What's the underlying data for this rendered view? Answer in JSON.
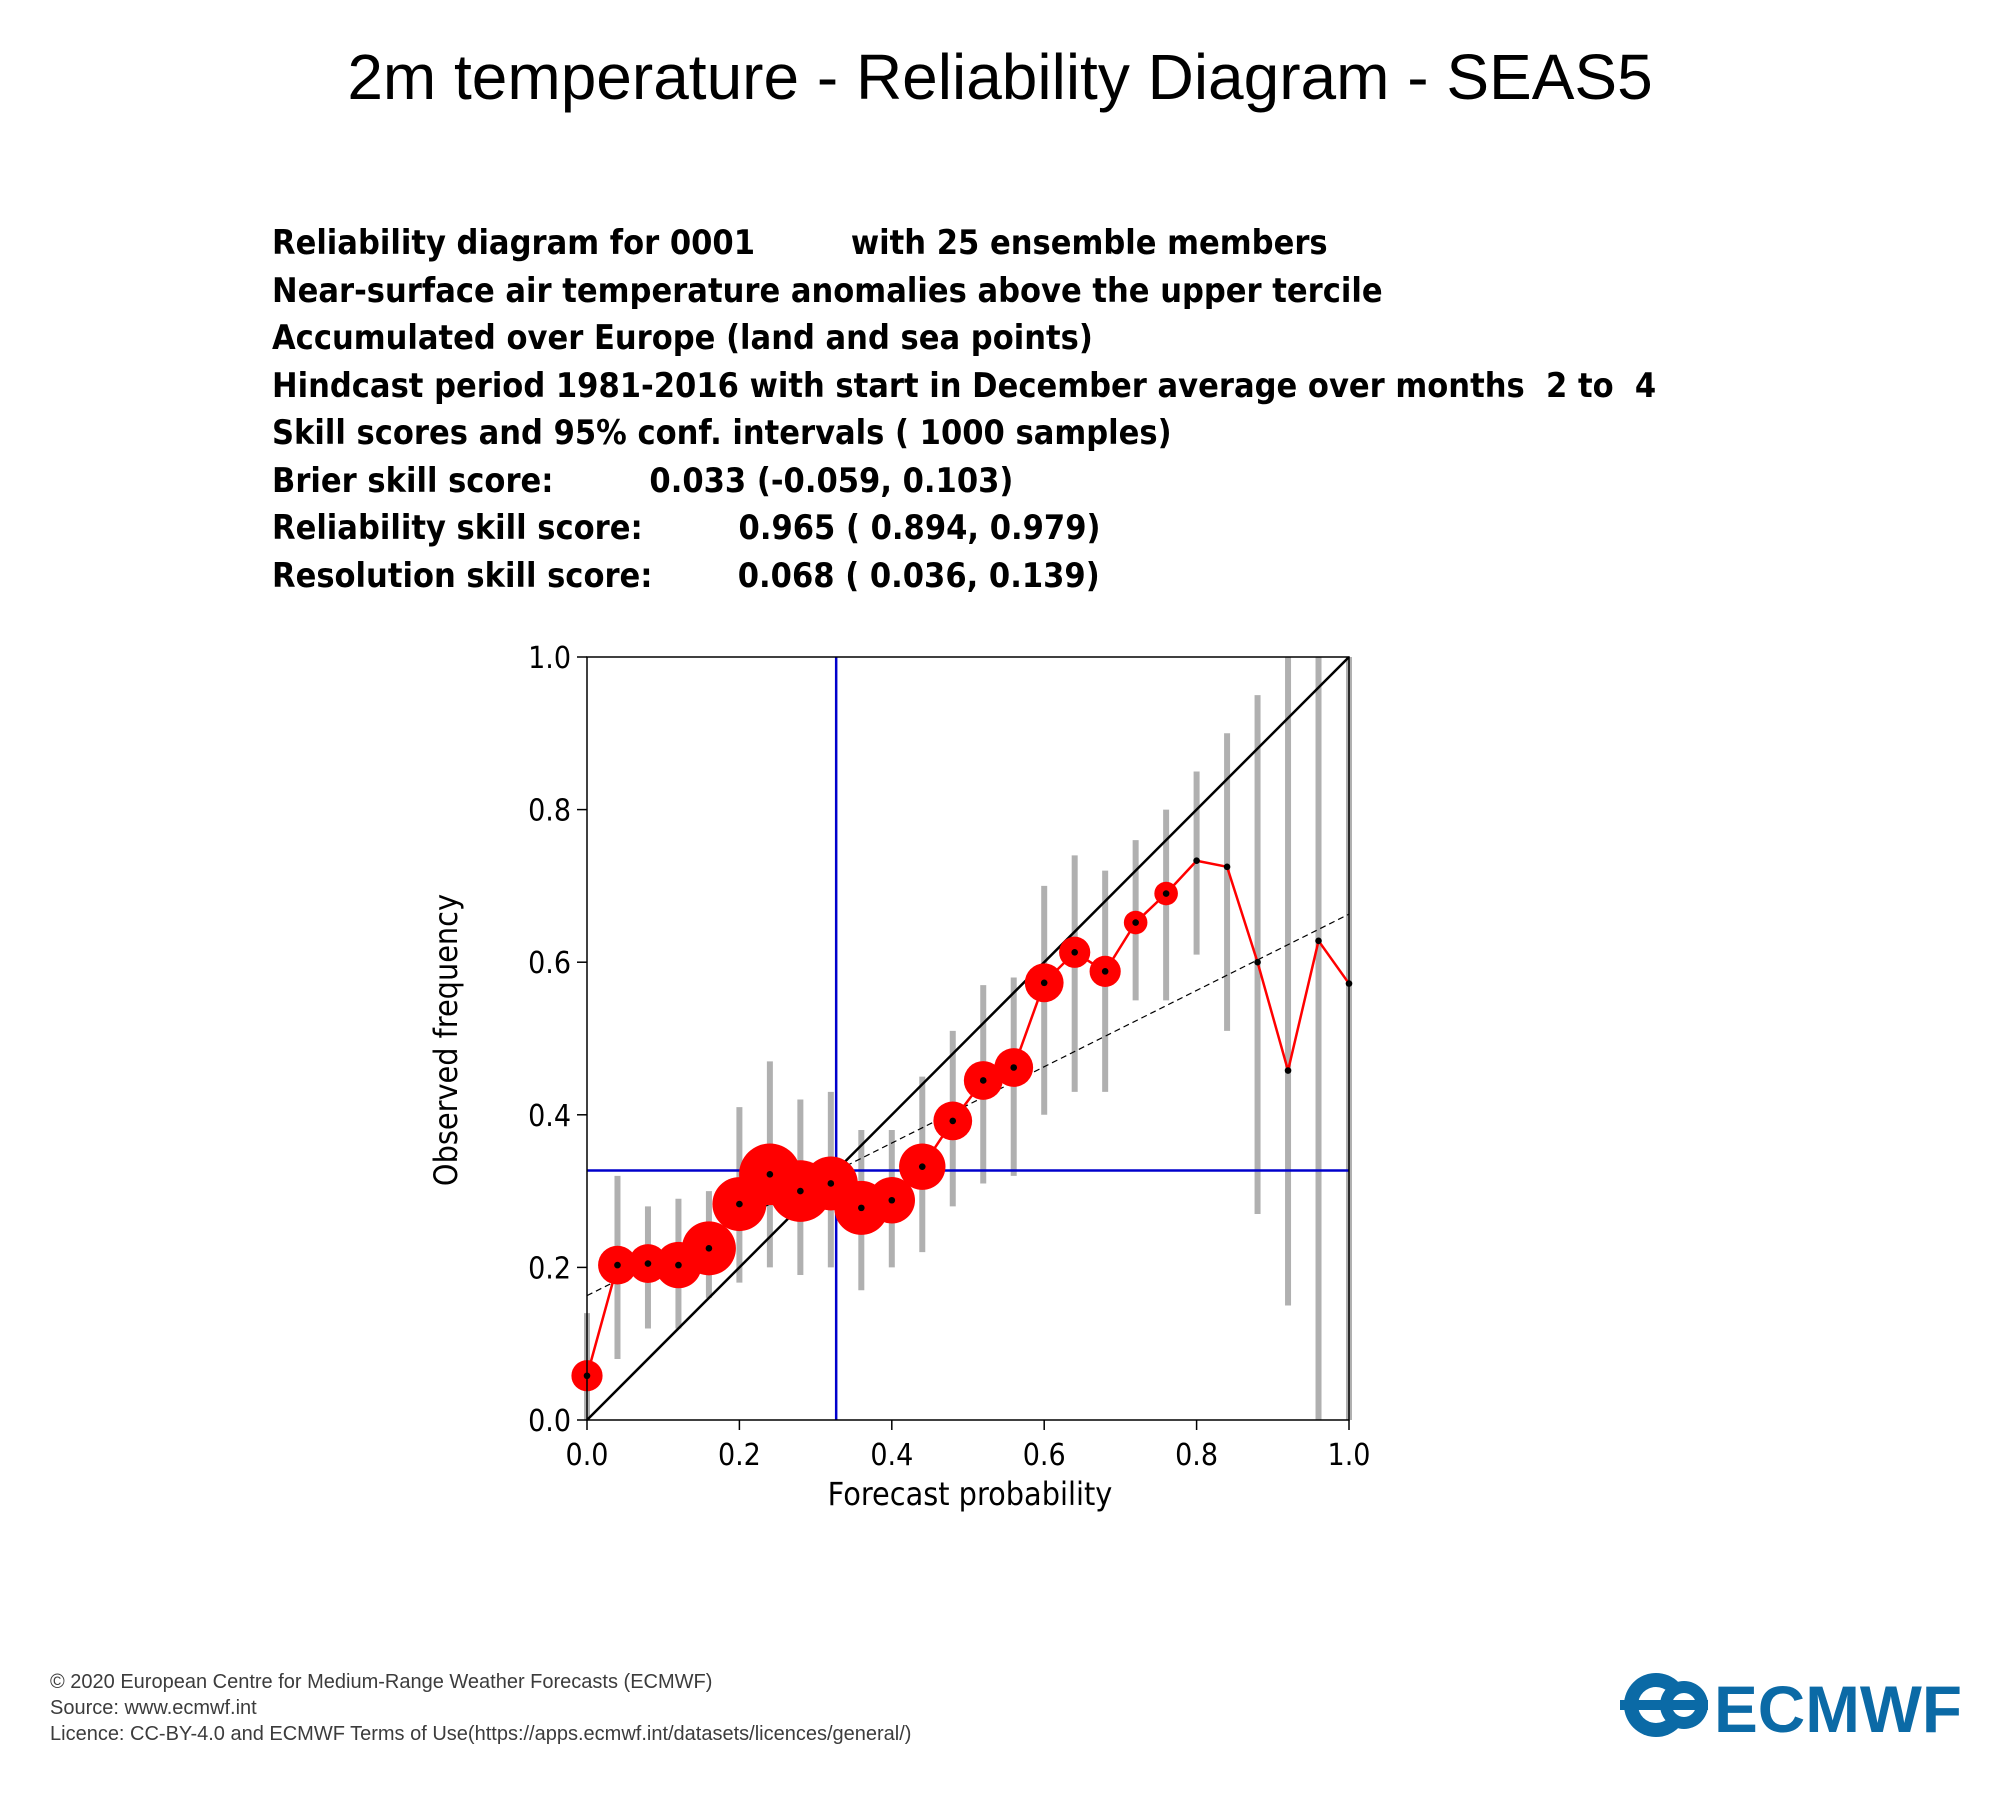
{
  "title": "2m temperature - Reliability Diagram - SEAS5",
  "info_lines": [
    "Reliability diagram for 0001         with 25 ensemble members",
    "Near-surface air temperature anomalies above the upper tercile",
    "Accumulated over Europe (land and sea points)",
    "Hindcast period 1981-2016 with start in December average over months  2 to  4",
    "Skill scores and 95% conf. intervals ( 1000 samples)",
    "Brier skill score:         0.033 (-0.059, 0.103)",
    "Reliability skill score:         0.965 ( 0.894, 0.979)",
    "Resolution skill score:        0.068 ( 0.036, 0.139)"
  ],
  "footer": {
    "copyright": "© 2020 European Centre for Medium-Range Weather Forecasts (ECMWF)",
    "source": "Source: www.ecmwf.int",
    "licence": "Licence: CC-BY-4.0 and ECMWF Terms of Use(https://apps.ecmwf.int/datasets/licences/general/)"
  },
  "logo_text": "ECMWF",
  "chart_data": {
    "type": "scatter",
    "xlabel": "Forecast probability",
    "ylabel": "Observed frequency",
    "xlim": [
      0,
      1
    ],
    "ylim": [
      0,
      1
    ],
    "xticks": [
      "0.0",
      "0.2",
      "0.4",
      "0.6",
      "0.8",
      "1.0"
    ],
    "yticks": [
      "0.0",
      "0.2",
      "0.4",
      "0.6",
      "0.8",
      "1.0"
    ],
    "climatology": 0.327,
    "regression_line": {
      "y_at_0": 0.163,
      "y_at_1": 0.663
    },
    "colors": {
      "reliability_curve": "#ff0000",
      "climatology_lines": "#0000cc",
      "diagonal": "#000000",
      "confidence_bars": "#b0b0b0"
    },
    "points": [
      {
        "x": 0.0,
        "y": 0.058,
        "size": 2,
        "ci": [
          0.0,
          0.14
        ]
      },
      {
        "x": 0.04,
        "y": 0.203,
        "size": 3,
        "ci": [
          0.08,
          0.32
        ]
      },
      {
        "x": 0.08,
        "y": 0.205,
        "size": 3,
        "ci": [
          0.12,
          0.28
        ]
      },
      {
        "x": 0.12,
        "y": 0.203,
        "size": 4,
        "ci": [
          0.12,
          0.29
        ]
      },
      {
        "x": 0.16,
        "y": 0.225,
        "size": 5,
        "ci": [
          0.16,
          0.3
        ]
      },
      {
        "x": 0.2,
        "y": 0.283,
        "size": 5,
        "ci": [
          0.18,
          0.41
        ]
      },
      {
        "x": 0.24,
        "y": 0.322,
        "size": 6,
        "ci": [
          0.2,
          0.47
        ]
      },
      {
        "x": 0.28,
        "y": 0.3,
        "size": 6,
        "ci": [
          0.19,
          0.42
        ]
      },
      {
        "x": 0.32,
        "y": 0.31,
        "size": 5,
        "ci": [
          0.2,
          0.43
        ]
      },
      {
        "x": 0.36,
        "y": 0.278,
        "size": 5,
        "ci": [
          0.17,
          0.38
        ]
      },
      {
        "x": 0.4,
        "y": 0.288,
        "size": 4,
        "ci": [
          0.2,
          0.38
        ]
      },
      {
        "x": 0.44,
        "y": 0.332,
        "size": 4,
        "ci": [
          0.22,
          0.45
        ]
      },
      {
        "x": 0.48,
        "y": 0.392,
        "size": 3,
        "ci": [
          0.28,
          0.51
        ]
      },
      {
        "x": 0.52,
        "y": 0.445,
        "size": 3,
        "ci": [
          0.31,
          0.57
        ]
      },
      {
        "x": 0.56,
        "y": 0.462,
        "size": 3,
        "ci": [
          0.32,
          0.58
        ]
      },
      {
        "x": 0.6,
        "y": 0.573,
        "size": 3,
        "ci": [
          0.4,
          0.7
        ]
      },
      {
        "x": 0.64,
        "y": 0.613,
        "size": 2,
        "ci": [
          0.43,
          0.74
        ]
      },
      {
        "x": 0.68,
        "y": 0.588,
        "size": 2,
        "ci": [
          0.43,
          0.72
        ]
      },
      {
        "x": 0.72,
        "y": 0.652,
        "size": 1,
        "ci": [
          0.55,
          0.76
        ]
      },
      {
        "x": 0.76,
        "y": 0.69,
        "size": 1,
        "ci": [
          0.55,
          0.8
        ]
      },
      {
        "x": 0.8,
        "y": 0.733,
        "size": 0,
        "ci": [
          0.61,
          0.85
        ]
      },
      {
        "x": 0.84,
        "y": 0.725,
        "size": 0,
        "ci": [
          0.51,
          0.9
        ]
      },
      {
        "x": 0.88,
        "y": 0.6,
        "size": 0,
        "ci": [
          0.27,
          0.95
        ]
      },
      {
        "x": 0.92,
        "y": 0.458,
        "size": 0,
        "ci": [
          0.15,
          1.0
        ]
      },
      {
        "x": 0.96,
        "y": 0.628,
        "size": 0,
        "ci": [
          0.0,
          1.0
        ]
      },
      {
        "x": 1.0,
        "y": 0.572,
        "size": 0,
        "ci": [
          0.0,
          1.0
        ]
      }
    ]
  }
}
